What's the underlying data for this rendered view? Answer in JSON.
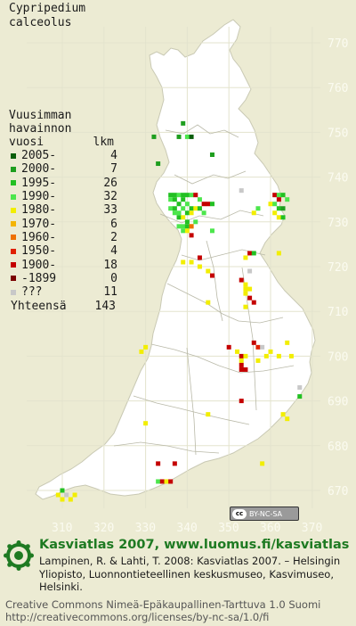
{
  "species": [
    "Cypripedium",
    "calceolus"
  ],
  "legend": {
    "title_lines": [
      "Vuusimman",
      "havainnon"
    ],
    "col_year": "vuosi",
    "col_count": "lkm",
    "rows": [
      {
        "label": "2005-",
        "count": "4",
        "color": "#0a5e0a"
      },
      {
        "label": "2000-",
        "count": "7",
        "color": "#1e9e1e"
      },
      {
        "label": "1995-",
        "count": "26",
        "color": "#22c022"
      },
      {
        "label": "1990-",
        "count": "32",
        "color": "#4ce64c"
      },
      {
        "label": "1980-",
        "count": "33",
        "color": "#f2ee00"
      },
      {
        "label": "1970-",
        "count": "6",
        "color": "#f4b400"
      },
      {
        "label": "1960-",
        "count": "2",
        "color": "#ee7000"
      },
      {
        "label": "1950-",
        "count": "4",
        "color": "#e02000"
      },
      {
        "label": "1900-",
        "count": "18",
        "color": "#c40000"
      },
      {
        "label": "-1899",
        "count": "0",
        "color": "#7a0000"
      },
      {
        "label": "???",
        "count": "11",
        "color": "#c8c8c8"
      }
    ],
    "total_label": "Yhteensä",
    "total_count": "143"
  },
  "axes": {
    "y_ticks": [
      "770",
      "760",
      "750",
      "740",
      "730",
      "720",
      "710",
      "700",
      "690",
      "680",
      "670"
    ],
    "x_ticks": [
      "310",
      "320",
      "330",
      "340",
      "350",
      "360",
      "370"
    ]
  },
  "cc_badge": "BY-NC-SA",
  "footer": {
    "brand": "Kasviatlas 2007, www.luomus.fi/kasviatlas",
    "citation": "Lampinen, R. & Lahti, T. 2008: Kasviatlas 2007. – Helsingin Yliopisto, Luonnontieteellinen keskusmuseo, Kasvimuseo, Helsinki.",
    "license_line1": "Creative Commons Nimeä-Epäkaupallinen-Tarttuva 1.0 Suomi",
    "license_line2": "http://creativecommons.org/licenses/by-nc-sa/1.0/fi"
  },
  "colors": {
    "background": "#ecebd3",
    "land": "#ffffff",
    "outside": "#d2d2bf",
    "grid": "#e2e2cc",
    "brand": "#1e7a22"
  },
  "records": [
    {
      "x": 339,
      "y": 752,
      "cat": 1
    },
    {
      "x": 338,
      "y": 749,
      "cat": 1
    },
    {
      "x": 332,
      "y": 749,
      "cat": 1
    },
    {
      "x": 346,
      "y": 745,
      "cat": 1
    },
    {
      "x": 340,
      "y": 749,
      "cat": 3
    },
    {
      "x": 341,
      "y": 749,
      "cat": 0
    },
    {
      "x": 333,
      "y": 743,
      "cat": 1
    },
    {
      "x": 336,
      "y": 736,
      "cat": 2
    },
    {
      "x": 337,
      "y": 736,
      "cat": 2
    },
    {
      "x": 338,
      "y": 736,
      "cat": 3
    },
    {
      "x": 339,
      "y": 736,
      "cat": 2
    },
    {
      "x": 340,
      "y": 736,
      "cat": 2
    },
    {
      "x": 341,
      "y": 736,
      "cat": 3
    },
    {
      "x": 342,
      "y": 736,
      "cat": 8
    },
    {
      "x": 343,
      "y": 735,
      "cat": 3
    },
    {
      "x": 336,
      "y": 735,
      "cat": 3
    },
    {
      "x": 337,
      "y": 735,
      "cat": 2
    },
    {
      "x": 339,
      "y": 735,
      "cat": 2
    },
    {
      "x": 340,
      "y": 734,
      "cat": 3
    },
    {
      "x": 338,
      "y": 734,
      "cat": 2
    },
    {
      "x": 344,
      "y": 734,
      "cat": 8
    },
    {
      "x": 345,
      "y": 734,
      "cat": 8
    },
    {
      "x": 346,
      "y": 734,
      "cat": 2
    },
    {
      "x": 336,
      "y": 733,
      "cat": 3
    },
    {
      "x": 337,
      "y": 733,
      "cat": 2
    },
    {
      "x": 339,
      "y": 733,
      "cat": 3
    },
    {
      "x": 341,
      "y": 733,
      "cat": 2
    },
    {
      "x": 342,
      "y": 733,
      "cat": 4
    },
    {
      "x": 343,
      "y": 733,
      "cat": 2
    },
    {
      "x": 337,
      "y": 732,
      "cat": 3
    },
    {
      "x": 338,
      "y": 732,
      "cat": 3
    },
    {
      "x": 340,
      "y": 732,
      "cat": 2
    },
    {
      "x": 341,
      "y": 732,
      "cat": 4
    },
    {
      "x": 344,
      "y": 732,
      "cat": 3
    },
    {
      "x": 338,
      "y": 731,
      "cat": 2
    },
    {
      "x": 339,
      "y": 731,
      "cat": 4
    },
    {
      "x": 340,
      "y": 730,
      "cat": 2
    },
    {
      "x": 342,
      "y": 730,
      "cat": 3
    },
    {
      "x": 339,
      "y": 729,
      "cat": 3
    },
    {
      "x": 340,
      "y": 729,
      "cat": 2
    },
    {
      "x": 341,
      "y": 729,
      "cat": 4
    },
    {
      "x": 338,
      "y": 729,
      "cat": 3
    },
    {
      "x": 339,
      "y": 728,
      "cat": 3
    },
    {
      "x": 340,
      "y": 728,
      "cat": 4
    },
    {
      "x": 341,
      "y": 727,
      "cat": 8
    },
    {
      "x": 346,
      "y": 728,
      "cat": 3
    },
    {
      "x": 361,
      "y": 736,
      "cat": 8
    },
    {
      "x": 362,
      "y": 736,
      "cat": 3
    },
    {
      "x": 363,
      "y": 736,
      "cat": 2
    },
    {
      "x": 362,
      "y": 735,
      "cat": 8
    },
    {
      "x": 364,
      "y": 735,
      "cat": 3
    },
    {
      "x": 360,
      "y": 734,
      "cat": 4
    },
    {
      "x": 361,
      "y": 734,
      "cat": 3
    },
    {
      "x": 362,
      "y": 733,
      "cat": 2
    },
    {
      "x": 363,
      "y": 733,
      "cat": 1
    },
    {
      "x": 357,
      "y": 733,
      "cat": 3
    },
    {
      "x": 356,
      "y": 732,
      "cat": 4
    },
    {
      "x": 362,
      "y": 731,
      "cat": 4
    },
    {
      "x": 363,
      "y": 731,
      "cat": 2
    },
    {
      "x": 361,
      "y": 732,
      "cat": 4
    },
    {
      "x": 353,
      "y": 737,
      "cat": 10
    },
    {
      "x": 355,
      "y": 723,
      "cat": 8
    },
    {
      "x": 356,
      "y": 723,
      "cat": 2
    },
    {
      "x": 354,
      "y": 722,
      "cat": 4
    },
    {
      "x": 362,
      "y": 723,
      "cat": 4
    },
    {
      "x": 343,
      "y": 722,
      "cat": 8
    },
    {
      "x": 339,
      "y": 721,
      "cat": 4
    },
    {
      "x": 341,
      "y": 721,
      "cat": 4
    },
    {
      "x": 343,
      "y": 720,
      "cat": 4
    },
    {
      "x": 345,
      "y": 719,
      "cat": 4
    },
    {
      "x": 355,
      "y": 719,
      "cat": 10
    },
    {
      "x": 346,
      "y": 718,
      "cat": 8
    },
    {
      "x": 354,
      "y": 716,
      "cat": 4
    },
    {
      "x": 354,
      "y": 715,
      "cat": 4
    },
    {
      "x": 355,
      "y": 715,
      "cat": 4
    },
    {
      "x": 354,
      "y": 714,
      "cat": 4
    },
    {
      "x": 355,
      "y": 713,
      "cat": 8
    },
    {
      "x": 356,
      "y": 712,
      "cat": 8
    },
    {
      "x": 353,
      "y": 717,
      "cat": 8
    },
    {
      "x": 345,
      "y": 712,
      "cat": 4
    },
    {
      "x": 354,
      "y": 711,
      "cat": 4
    },
    {
      "x": 329,
      "y": 701,
      "cat": 4
    },
    {
      "x": 330,
      "y": 702,
      "cat": 4
    },
    {
      "x": 350,
      "y": 702,
      "cat": 8
    },
    {
      "x": 356,
      "y": 703,
      "cat": 8
    },
    {
      "x": 357,
      "y": 702,
      "cat": 7
    },
    {
      "x": 358,
      "y": 702,
      "cat": 10
    },
    {
      "x": 352,
      "y": 701,
      "cat": 4
    },
    {
      "x": 353,
      "y": 700,
      "cat": 8
    },
    {
      "x": 353,
      "y": 699,
      "cat": 4
    },
    {
      "x": 354,
      "y": 700,
      "cat": 4
    },
    {
      "x": 353,
      "y": 697,
      "cat": 8
    },
    {
      "x": 354,
      "y": 697,
      "cat": 8
    },
    {
      "x": 353,
      "y": 698,
      "cat": 8
    },
    {
      "x": 359,
      "y": 700,
      "cat": 4
    },
    {
      "x": 360,
      "y": 701,
      "cat": 4
    },
    {
      "x": 362,
      "y": 700,
      "cat": 4
    },
    {
      "x": 365,
      "y": 700,
      "cat": 4
    },
    {
      "x": 364,
      "y": 703,
      "cat": 4
    },
    {
      "x": 357,
      "y": 699,
      "cat": 4
    },
    {
      "x": 353,
      "y": 690,
      "cat": 8
    },
    {
      "x": 367,
      "y": 693,
      "cat": 10
    },
    {
      "x": 367,
      "y": 691,
      "cat": 2
    },
    {
      "x": 363,
      "y": 687,
      "cat": 4
    },
    {
      "x": 364,
      "y": 686,
      "cat": 4
    },
    {
      "x": 330,
      "y": 685,
      "cat": 4
    },
    {
      "x": 345,
      "y": 687,
      "cat": 4
    },
    {
      "x": 358,
      "y": 676,
      "cat": 4
    },
    {
      "x": 333,
      "y": 676,
      "cat": 8
    },
    {
      "x": 337,
      "y": 676,
      "cat": 8
    },
    {
      "x": 333,
      "y": 672,
      "cat": 3
    },
    {
      "x": 334,
      "y": 672,
      "cat": 8
    },
    {
      "x": 335,
      "y": 672,
      "cat": 4
    },
    {
      "x": 336,
      "y": 672,
      "cat": 8
    },
    {
      "x": 310,
      "y": 670,
      "cat": 2
    },
    {
      "x": 309,
      "y": 669,
      "cat": 4
    },
    {
      "x": 311,
      "y": 669,
      "cat": 10
    },
    {
      "x": 312,
      "y": 668,
      "cat": 4
    },
    {
      "x": 310,
      "y": 668,
      "cat": 4
    },
    {
      "x": 313,
      "y": 669,
      "cat": 4
    },
    {
      "x": 341,
      "y": 729,
      "cat": 6
    }
  ]
}
